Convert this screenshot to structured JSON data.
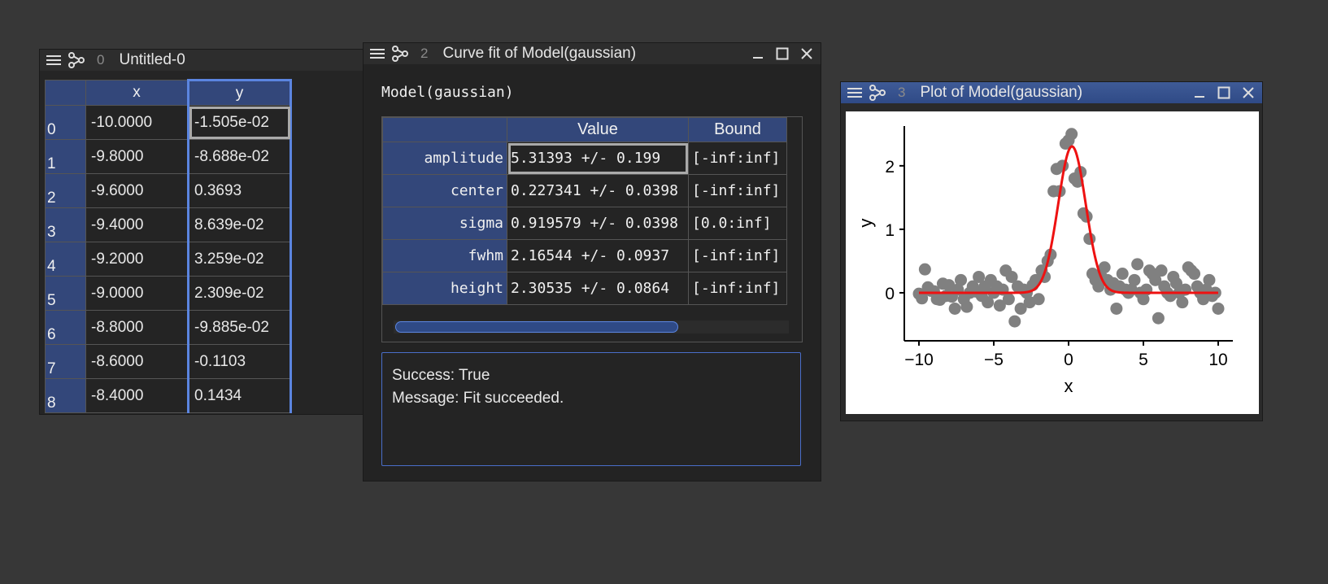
{
  "windows": {
    "table": {
      "number": "0",
      "title": "Untitled-0",
      "columns": [
        "x",
        "y"
      ],
      "rows": [
        {
          "idx": "0",
          "x": "-10.0000",
          "y": "-1.505e-02"
        },
        {
          "idx": "1",
          "x": "-9.8000",
          "y": "-8.688e-02"
        },
        {
          "idx": "2",
          "x": "-9.6000",
          "y": "0.3693"
        },
        {
          "idx": "3",
          "x": "-9.4000",
          "y": "8.639e-02"
        },
        {
          "idx": "4",
          "x": "-9.2000",
          "y": "3.259e-02"
        },
        {
          "idx": "5",
          "x": "-9.0000",
          "y": "2.309e-02"
        },
        {
          "idx": "6",
          "x": "-8.8000",
          "y": "-9.885e-02"
        },
        {
          "idx": "7",
          "x": "-8.6000",
          "y": "-0.1103"
        },
        {
          "idx": "8",
          "x": "-8.4000",
          "y": "0.1434"
        }
      ]
    },
    "fit": {
      "number": "2",
      "title": "Curve fit of Model(gaussian)",
      "model_label": "Model(gaussian)",
      "col_value": "Value",
      "col_bound": "Bound",
      "params": [
        {
          "name": "amplitude",
          "value": "5.31393 +/- 0.199",
          "bound": "[-inf:inf]"
        },
        {
          "name": "center",
          "value": "0.227341 +/- 0.0398",
          "bound": "[-inf:inf]"
        },
        {
          "name": "sigma",
          "value": "0.919579 +/- 0.0398",
          "bound": "[0.0:inf]"
        },
        {
          "name": "fwhm",
          "value": "2.16544 +/- 0.0937",
          "bound": "[-inf:inf]"
        },
        {
          "name": "height",
          "value": "2.30535 +/- 0.0864",
          "bound": "[-inf:inf]"
        }
      ],
      "result_line1": "Success: True",
      "result_line2": "Message: Fit succeeded."
    },
    "plot": {
      "number": "3",
      "title": "Plot of Model(gaussian)"
    }
  },
  "chart_data": {
    "type": "scatter",
    "xlabel": "x",
    "ylabel": "y",
    "xlim": [
      -10,
      10
    ],
    "ylim": [
      -0.5,
      2.6
    ],
    "xticks": [
      "−10",
      "−5",
      "0",
      "5",
      "10"
    ],
    "yticks": [
      "0",
      "1",
      "2"
    ],
    "scatter_color": "#808080",
    "fit_color": "#ee1111",
    "series": [
      {
        "type": "scatter",
        "x": [
          -10.0,
          -9.8,
          -9.6,
          -9.4,
          -9.2,
          -9.0,
          -8.8,
          -8.6,
          -8.4,
          -8.2,
          -8.0,
          -7.8,
          -7.6,
          -7.4,
          -7.2,
          -7.0,
          -6.8,
          -6.6,
          -6.4,
          -6.2,
          -6.0,
          -5.8,
          -5.6,
          -5.4,
          -5.2,
          -5.0,
          -4.8,
          -4.6,
          -4.4,
          -4.2,
          -4.0,
          -3.8,
          -3.6,
          -3.4,
          -3.2,
          -3.0,
          -2.8,
          -2.6,
          -2.4,
          -2.2,
          -2.0,
          -1.8,
          -1.6,
          -1.4,
          -1.2,
          -1.0,
          -0.8,
          -0.6,
          -0.4,
          -0.2,
          0.0,
          0.2,
          0.4,
          0.6,
          0.8,
          1.0,
          1.2,
          1.4,
          1.6,
          1.8,
          2.0,
          2.2,
          2.4,
          2.6,
          2.8,
          3.0,
          3.2,
          3.4,
          3.6,
          3.8,
          4.0,
          4.2,
          4.4,
          4.6,
          4.8,
          5.0,
          5.2,
          5.4,
          5.6,
          5.8,
          6.0,
          6.2,
          6.4,
          6.6,
          6.8,
          7.0,
          7.2,
          7.4,
          7.6,
          7.8,
          8.0,
          8.2,
          8.4,
          8.6,
          8.8,
          9.0,
          9.2,
          9.4,
          9.6,
          9.8,
          10.0
        ],
        "y": [
          -0.015,
          -0.087,
          0.369,
          0.086,
          0.033,
          0.023,
          -0.099,
          -0.11,
          0.143,
          -0.05,
          0.12,
          -0.06,
          -0.25,
          0.05,
          0.2,
          -0.1,
          -0.22,
          0.0,
          0.1,
          0.02,
          0.25,
          -0.05,
          0.1,
          -0.15,
          0.2,
          0.0,
          0.1,
          -0.2,
          0.05,
          0.35,
          -0.1,
          0.25,
          -0.45,
          0.1,
          -0.25,
          0.05,
          0.0,
          -0.15,
          0.12,
          0.2,
          -0.1,
          0.35,
          0.25,
          0.5,
          0.6,
          1.6,
          1.95,
          1.6,
          2.0,
          2.35,
          2.4,
          2.5,
          1.8,
          1.75,
          1.9,
          1.25,
          1.2,
          0.85,
          0.3,
          0.2,
          0.1,
          0.25,
          0.4,
          0.2,
          0.05,
          0.15,
          -0.25,
          0.1,
          0.3,
          0.05,
          0.0,
          0.05,
          0.2,
          0.45,
          0.0,
          -0.1,
          0.05,
          0.35,
          0.3,
          0.2,
          -0.4,
          0.35,
          0.1,
          0.0,
          -0.05,
          0.25,
          0.15,
          0.0,
          -0.15,
          0.05,
          0.4,
          0.35,
          0.3,
          0.1,
          0.0,
          -0.1,
          0.05,
          0.2,
          -0.05,
          0.0,
          -0.25
        ]
      },
      {
        "type": "line",
        "name": "fit",
        "x_range": [
          -10,
          10
        ],
        "amplitude": 5.31393,
        "center": 0.227341,
        "sigma": 0.919579
      }
    ]
  }
}
